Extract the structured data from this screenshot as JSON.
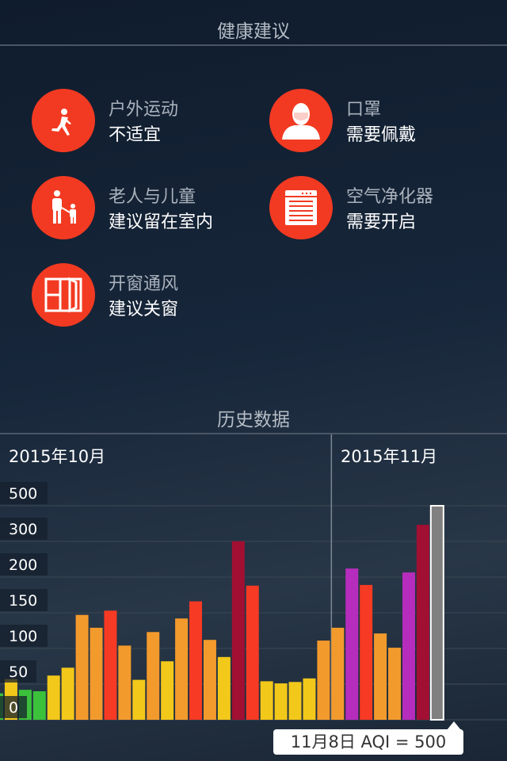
{
  "health": {
    "title": "健康建议",
    "items": [
      {
        "icon": "running-person-icon",
        "label": "户外运动",
        "value": "不适宜"
      },
      {
        "icon": "mask-face-icon",
        "label": "口罩",
        "value": "需要佩戴"
      },
      {
        "icon": "adult-child-icon",
        "label": "老人与儿童",
        "value": "建议留在室内"
      },
      {
        "icon": "air-purifier-icon",
        "label": "空气净化器",
        "value": "需要开启"
      },
      {
        "icon": "window-icon",
        "label": "开窗通风",
        "value": "建议关窗"
      }
    ],
    "icon_color": "#f23a22"
  },
  "history": {
    "title": "历史数据",
    "months": [
      "2015年10月",
      "2015年11月"
    ],
    "tooltip": "11月8日 AQI = 500"
  },
  "chart_data": {
    "type": "bar",
    "ylabel": "",
    "xlabel": "",
    "y_ticks": [
      0,
      50,
      100,
      150,
      200,
      300,
      500
    ],
    "y_scale": "piecewise (equal spacing between ticks)",
    "grid": true,
    "values": [
      37,
      57,
      42,
      40,
      62,
      73,
      147,
      129,
      153,
      104,
      56,
      123,
      82,
      142,
      166,
      112,
      88,
      301,
      188,
      54,
      51,
      53,
      58,
      111,
      129,
      224,
      189,
      121,
      101,
      213,
      393,
      500
    ],
    "month_boundary_index": 24,
    "selected_index": 31,
    "color_scale": [
      {
        "max": 50,
        "color": "#3cc13b"
      },
      {
        "max": 100,
        "color": "#f2c81a"
      },
      {
        "max": 150,
        "color": "#f39a2c"
      },
      {
        "max": 200,
        "color": "#f63a24"
      },
      {
        "max": 300,
        "color": "#b62dbd"
      },
      {
        "max": 100000,
        "color": "#a10f32"
      }
    ],
    "selected_color": "#808080"
  }
}
